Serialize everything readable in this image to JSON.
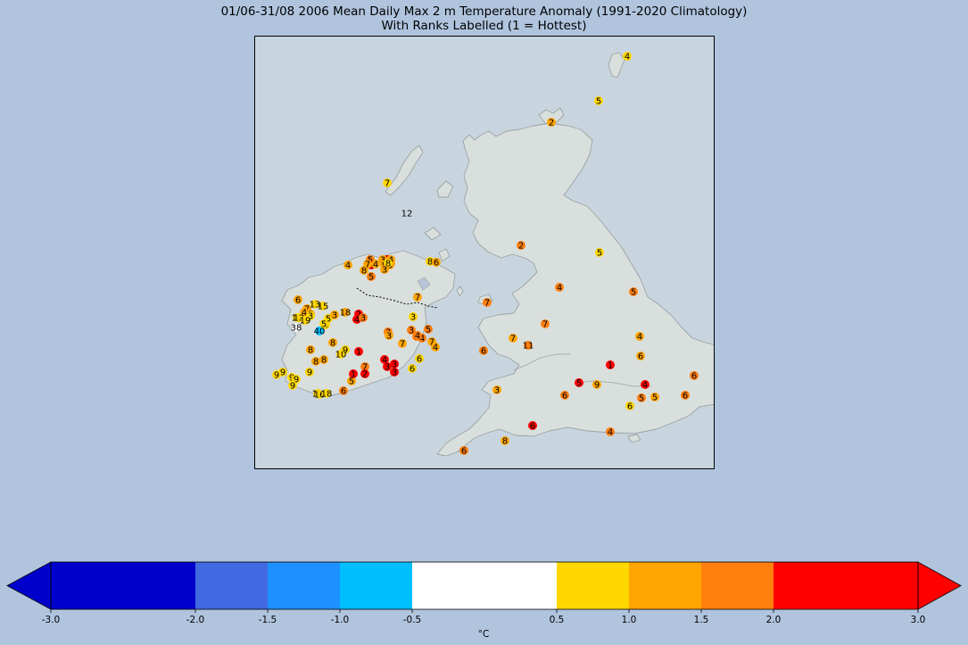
{
  "title": {
    "line1": "01/06-31/08 2006 Mean Daily Max 2 m Temperature Anomaly (1991-2020 Climatology)",
    "line2": "With Ranks Labelled (1 = Hottest)"
  },
  "colorbar": {
    "unit_label": "°C",
    "bins": [
      {
        "from": -3.0,
        "to": -2.0,
        "color": "#0000cd"
      },
      {
        "from": -2.0,
        "to": -1.5,
        "color": "#4169e1"
      },
      {
        "from": -1.5,
        "to": -1.0,
        "color": "#1e90ff"
      },
      {
        "from": -1.0,
        "to": -0.5,
        "color": "#00bfff"
      },
      {
        "from": -0.5,
        "to": 0.5,
        "color": "#ffffff"
      },
      {
        "from": 0.5,
        "to": 1.0,
        "color": "#ffd700"
      },
      {
        "from": 1.0,
        "to": 1.5,
        "color": "#ffa500"
      },
      {
        "from": 1.5,
        "to": 2.0,
        "color": "#ff7f0e"
      },
      {
        "from": 2.0,
        "to": 3.0,
        "color": "#ff0000"
      }
    ],
    "ticks": [
      "-3.0",
      "-2.0",
      "-1.5",
      "-1.0",
      "-0.5",
      "0.5",
      "1.0",
      "1.5",
      "2.0",
      "3.0"
    ],
    "extend": "both"
  },
  "stations": [
    {
      "rank": "4",
      "color": "#ffd700"
    },
    {
      "rank": "5",
      "color": "#ffd700"
    },
    {
      "rank": "2",
      "color": "#ffa500"
    },
    {
      "rank": "7",
      "color": "#ffd700"
    },
    {
      "rank": "12",
      "color": "#c9d5de"
    },
    {
      "rank": "2",
      "color": "#ff7f0e"
    },
    {
      "rank": "5",
      "color": "#ffd700"
    },
    {
      "rank": "4",
      "color": "#ff7f0e"
    },
    {
      "rank": "5",
      "color": "#ff7f0e"
    },
    {
      "rank": "7",
      "color": "#ffa500"
    },
    {
      "rank": "7",
      "color": "#ff7f0e"
    },
    {
      "rank": "7",
      "color": "#ff7f0e"
    },
    {
      "rank": "11",
      "color": "#ff7f0e"
    },
    {
      "rank": "7",
      "color": "#ffa500"
    },
    {
      "rank": "6",
      "color": "#ff7f0e"
    },
    {
      "rank": "4",
      "color": "#ffa500"
    },
    {
      "rank": "6",
      "color": "#ffa500"
    },
    {
      "rank": "6",
      "color": "#ff7f0e"
    },
    {
      "rank": "1",
      "color": "#ff0000"
    },
    {
      "rank": "5",
      "color": "#ff0000"
    },
    {
      "rank": "9",
      "color": "#ffa500"
    },
    {
      "rank": "6",
      "color": "#ff7f0e"
    },
    {
      "rank": "4",
      "color": "#ff0000"
    },
    {
      "rank": "6",
      "color": "#ff7f0e"
    },
    {
      "rank": "5",
      "color": "#ff7f0e"
    },
    {
      "rank": "5",
      "color": "#ffa500"
    },
    {
      "rank": "6",
      "color": "#ffd700"
    },
    {
      "rank": "3",
      "color": "#ffa500"
    },
    {
      "rank": "6",
      "color": "#ff0000"
    },
    {
      "rank": "8",
      "color": "#ffa500"
    },
    {
      "rank": "4",
      "color": "#ff7f0e"
    },
    {
      "rank": "6",
      "color": "#ff7f0e"
    },
    {
      "rank": "4",
      "color": "#ffa500"
    },
    {
      "rank": "5",
      "color": "#ff7f0e"
    },
    {
      "rank": "4",
      "color": "#ff0000"
    },
    {
      "rank": "9",
      "color": "#ffa500"
    },
    {
      "rank": "3",
      "color": "#ffa500"
    },
    {
      "rank": "8",
      "color": "#ffd700"
    },
    {
      "rank": "6",
      "color": "#ffa500"
    },
    {
      "rank": "7",
      "color": "#ffa500"
    },
    {
      "rank": "4",
      "color": "#ffa500"
    },
    {
      "rank": "3",
      "color": "#ffa500"
    },
    {
      "rank": "3",
      "color": "#ffd700"
    },
    {
      "rank": "15",
      "color": "#ffd700"
    },
    {
      "rank": "13",
      "color": "#ffd700"
    },
    {
      "rank": "11",
      "color": "#ffd700"
    },
    {
      "rank": "12",
      "color": "#ffd700"
    },
    {
      "rank": "19",
      "color": "#ffd700"
    },
    {
      "rank": "6",
      "color": "#ffd700"
    },
    {
      "rank": "5",
      "color": "#ffd700"
    },
    {
      "rank": "3",
      "color": "#ffa500"
    },
    {
      "rank": "18",
      "color": "#ffa500"
    },
    {
      "rank": "2",
      "color": "#ff0000"
    },
    {
      "rank": "4",
      "color": "#ff0000"
    },
    {
      "rank": "3",
      "color": "#ff7f0e"
    },
    {
      "rank": "38",
      "color": "#ffffff"
    },
    {
      "rank": "40",
      "color": "#00bfff"
    },
    {
      "rank": "5",
      "color": "#ffd700"
    },
    {
      "rank": "3",
      "color": "#ffd700"
    },
    {
      "rank": "3",
      "color": "#ff7f0e"
    },
    {
      "rank": "4",
      "color": "#ff7f0e"
    },
    {
      "rank": "3",
      "color": "#ff7f0e"
    },
    {
      "rank": "3",
      "color": "#ff7f0e"
    },
    {
      "rank": "4",
      "color": "#ff7f0e"
    },
    {
      "rank": "5",
      "color": "#ff7f0e"
    },
    {
      "rank": "7",
      "color": "#ffa500"
    },
    {
      "rank": "4",
      "color": "#ffa500"
    },
    {
      "rank": "3",
      "color": "#ffa500"
    },
    {
      "rank": "7",
      "color": "#ffa500"
    },
    {
      "rank": "8",
      "color": "#ffa500"
    },
    {
      "rank": "9",
      "color": "#ffd700"
    },
    {
      "rank": "10",
      "color": "#ffd700"
    },
    {
      "rank": "1",
      "color": "#ff0000"
    },
    {
      "rank": "8",
      "color": "#ffa500"
    },
    {
      "rank": "8",
      "color": "#ffa500"
    },
    {
      "rank": "8",
      "color": "#ffa500"
    },
    {
      "rank": "9",
      "color": "#ffd700"
    },
    {
      "rank": "9",
      "color": "#ffd700"
    },
    {
      "rank": "9",
      "color": "#ffd700"
    },
    {
      "rank": "9",
      "color": "#ffd700"
    },
    {
      "rank": "9",
      "color": "#ffd700"
    },
    {
      "rank": "9",
      "color": "#ffd700"
    },
    {
      "rank": "7",
      "color": "#ff7f0e"
    },
    {
      "rank": "3",
      "color": "#ff0000"
    },
    {
      "rank": "4",
      "color": "#ff0000"
    },
    {
      "rank": "3",
      "color": "#ff0000"
    },
    {
      "rank": "3",
      "color": "#ff0000"
    },
    {
      "rank": "6",
      "color": "#ffd700"
    },
    {
      "rank": "6",
      "color": "#ffd700"
    },
    {
      "rank": "5",
      "color": "#ffa500"
    },
    {
      "rank": "1",
      "color": "#ff0000"
    },
    {
      "rank": "2",
      "color": "#ff0000"
    },
    {
      "rank": "6",
      "color": "#ff7f0e"
    },
    {
      "rank": "19",
      "color": "#ffd700"
    },
    {
      "rank": "16",
      "color": "#ffd700"
    },
    {
      "rank": "18",
      "color": "#ffd700"
    },
    {
      "rank": "3",
      "color": "#ffa500"
    },
    {
      "rank": "4",
      "color": "#ffa500"
    },
    {
      "rank": "4",
      "color": "#ff0000"
    },
    {
      "rank": "5",
      "color": "#ff7f0e"
    },
    {
      "rank": "9",
      "color": "#ffa500"
    },
    {
      "rank": "8",
      "color": "#ffd700"
    },
    {
      "rank": "3",
      "color": "#ffa500"
    },
    {
      "rank": "6",
      "color": "#ffa500"
    },
    {
      "rank": "8",
      "color": "#ffa500"
    },
    {
      "rank": "7",
      "color": "#ffa500"
    },
    {
      "rank": "4",
      "color": "#ffa500"
    }
  ]
}
